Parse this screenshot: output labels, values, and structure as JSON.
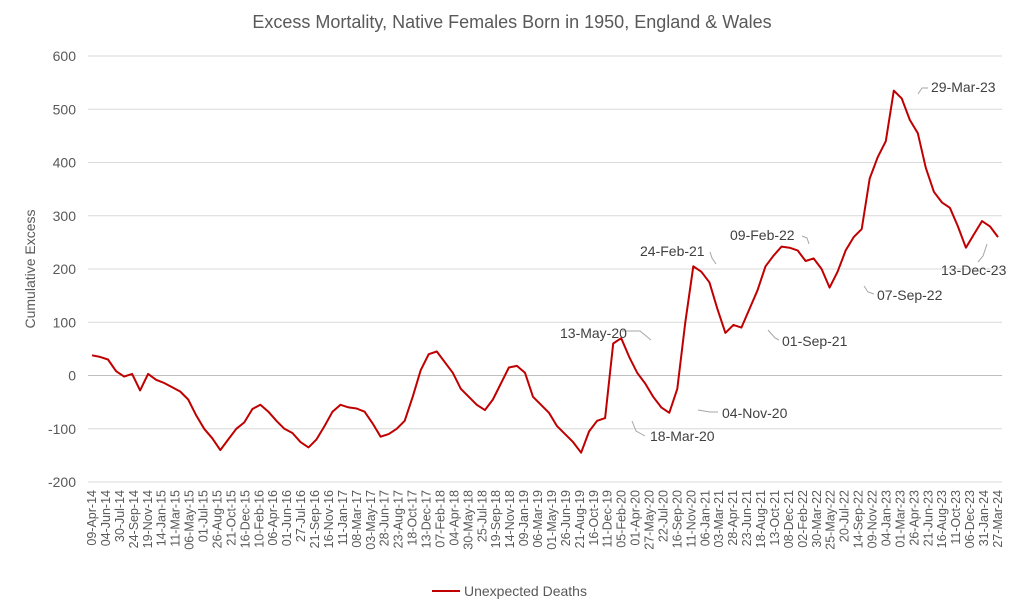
{
  "chart_data": {
    "type": "line",
    "title": "Excess Mortality, Native Females Born in 1950, England & Wales",
    "ylabel": "Cumulative Excess",
    "xlabel": "",
    "ylim": [
      -200,
      600
    ],
    "yticks": [
      -200,
      -100,
      0,
      100,
      200,
      300,
      400,
      500,
      600
    ],
    "grid": true,
    "legend_position": "bottom",
    "line_color": "#c00000",
    "x_tick_labels": [
      "09-Apr-14",
      "04-Jun-14",
      "30-Jul-14",
      "24-Sep-14",
      "19-Nov-14",
      "14-Jan-15",
      "11-Mar-15",
      "06-May-15",
      "01-Jul-15",
      "26-Aug-15",
      "21-Oct-15",
      "16-Dec-15",
      "10-Feb-16",
      "06-Apr-16",
      "01-Jun-16",
      "27-Jul-16",
      "21-Sep-16",
      "16-Nov-16",
      "11-Jan-17",
      "08-Mar-17",
      "03-May-17",
      "28-Jun-17",
      "23-Aug-17",
      "18-Oct-17",
      "13-Dec-17",
      "07-Feb-18",
      "04-Apr-18",
      "30-May-18",
      "25-Jul-18",
      "19-Sep-18",
      "14-Nov-18",
      "09-Jan-19",
      "06-Mar-19",
      "01-May-19",
      "26-Jun-19",
      "21-Aug-19",
      "16-Oct-19",
      "11-Dec-19",
      "05-Feb-20",
      "01-Apr-20",
      "27-May-20",
      "22-Jul-20",
      "16-Sep-20",
      "11-Nov-20",
      "06-Jan-21",
      "03-Mar-21",
      "28-Apr-21",
      "23-Jun-21",
      "18-Aug-21",
      "13-Oct-21",
      "08-Dec-21",
      "02-Feb-22",
      "30-Mar-22",
      "25-May-22",
      "20-Jul-22",
      "14-Sep-22",
      "09-Nov-22",
      "04-Jan-23",
      "01-Mar-23",
      "26-Apr-23",
      "21-Jun-23",
      "16-Aug-23",
      "11-Oct-23",
      "06-Dec-23",
      "31-Jan-24",
      "27-Mar-24"
    ],
    "series": [
      {
        "name": "Unexpected Deaths",
        "points": [
          [
            0,
            38
          ],
          [
            1,
            35
          ],
          [
            2,
            30
          ],
          [
            3,
            8
          ],
          [
            4,
            -2
          ],
          [
            5,
            3
          ],
          [
            6,
            -28
          ],
          [
            7,
            3
          ],
          [
            8,
            -8
          ],
          [
            9,
            -14
          ],
          [
            10,
            -22
          ],
          [
            11,
            -30
          ],
          [
            12,
            -45
          ],
          [
            13,
            -75
          ],
          [
            14,
            -100
          ],
          [
            15,
            -118
          ],
          [
            16,
            -140
          ],
          [
            17,
            -120
          ],
          [
            18,
            -100
          ],
          [
            19,
            -88
          ],
          [
            20,
            -63
          ],
          [
            21,
            -55
          ],
          [
            22,
            -68
          ],
          [
            23,
            -85
          ],
          [
            24,
            -100
          ],
          [
            25,
            -108
          ],
          [
            26,
            -125
          ],
          [
            27,
            -135
          ],
          [
            28,
            -120
          ],
          [
            29,
            -95
          ],
          [
            30,
            -68
          ],
          [
            31,
            -55
          ],
          [
            32,
            -60
          ],
          [
            33,
            -62
          ],
          [
            34,
            -68
          ],
          [
            35,
            -90
          ],
          [
            36,
            -115
          ],
          [
            37,
            -110
          ],
          [
            38,
            -100
          ],
          [
            39,
            -85
          ],
          [
            40,
            -40
          ],
          [
            41,
            10
          ],
          [
            42,
            40
          ],
          [
            43,
            45
          ],
          [
            44,
            25
          ],
          [
            45,
            5
          ],
          [
            46,
            -25
          ],
          [
            47,
            -40
          ],
          [
            48,
            -55
          ],
          [
            49,
            -65
          ],
          [
            50,
            -45
          ],
          [
            51,
            -15
          ],
          [
            52,
            15
          ],
          [
            53,
            18
          ],
          [
            54,
            5
          ],
          [
            55,
            -40
          ],
          [
            56,
            -55
          ],
          [
            57,
            -70
          ],
          [
            58,
            -95
          ],
          [
            59,
            -110
          ],
          [
            60,
            -125
          ],
          [
            61,
            -145
          ],
          [
            62,
            -105
          ],
          [
            63,
            -85
          ],
          [
            64,
            -80
          ],
          [
            65,
            60
          ],
          [
            66,
            70
          ],
          [
            67,
            35
          ],
          [
            68,
            5
          ],
          [
            69,
            -15
          ],
          [
            70,
            -40
          ],
          [
            71,
            -60
          ],
          [
            72,
            -70
          ],
          [
            73,
            -25
          ],
          [
            74,
            100
          ],
          [
            75,
            205
          ],
          [
            76,
            195
          ],
          [
            77,
            175
          ],
          [
            78,
            125
          ],
          [
            79,
            80
          ],
          [
            80,
            95
          ],
          [
            81,
            90
          ],
          [
            82,
            125
          ],
          [
            83,
            160
          ],
          [
            84,
            205
          ],
          [
            85,
            225
          ],
          [
            86,
            242
          ],
          [
            87,
            240
          ],
          [
            88,
            235
          ],
          [
            89,
            215
          ],
          [
            90,
            220
          ],
          [
            91,
            200
          ],
          [
            92,
            165
          ],
          [
            93,
            195
          ],
          [
            94,
            235
          ],
          [
            95,
            260
          ],
          [
            96,
            275
          ],
          [
            97,
            370
          ],
          [
            98,
            410
          ],
          [
            99,
            440
          ],
          [
            100,
            535
          ],
          [
            101,
            520
          ],
          [
            102,
            480
          ],
          [
            103,
            455
          ],
          [
            104,
            390
          ],
          [
            105,
            345
          ],
          [
            106,
            325
          ],
          [
            107,
            315
          ],
          [
            108,
            280
          ],
          [
            109,
            240
          ],
          [
            110,
            265
          ],
          [
            111,
            290
          ],
          [
            112,
            280
          ],
          [
            113,
            260
          ]
        ]
      }
    ],
    "annotations": [
      {
        "label": "13-May-20"
      },
      {
        "label": "18-Mar-20"
      },
      {
        "label": "04-Nov-20"
      },
      {
        "label": "24-Feb-21"
      },
      {
        "label": "01-Sep-21"
      },
      {
        "label": "09-Feb-22"
      },
      {
        "label": "07-Sep-22"
      },
      {
        "label": "29-Mar-23"
      },
      {
        "label": "13-Dec-23"
      }
    ]
  }
}
